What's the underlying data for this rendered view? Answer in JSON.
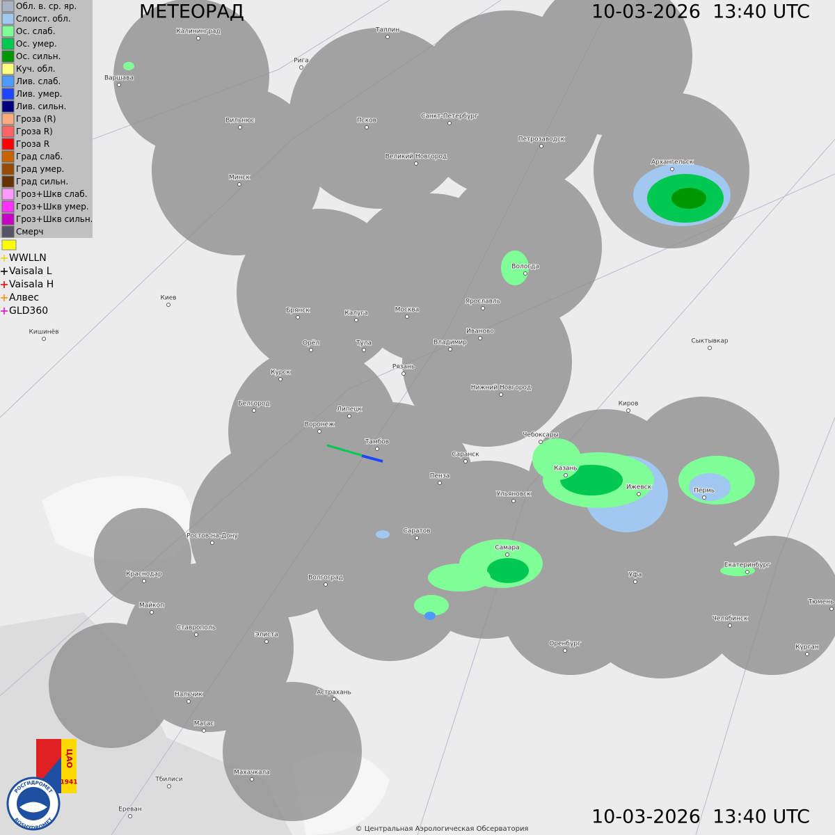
{
  "header": {
    "title": "МЕТЕОРАД",
    "timestamp": "10-03-2026  13:40 UTC"
  },
  "legend": {
    "items": [
      {
        "label": "Обл. в. ср. яр.",
        "color": "#aab4c4"
      },
      {
        "label": "Слоист. обл.",
        "color": "#a0c8f0"
      },
      {
        "label": "Ос. слаб.",
        "color": "#80ff98"
      },
      {
        "label": "Ос. умер.",
        "color": "#00c850"
      },
      {
        "label": "Ос. сильн.",
        "color": "#009600"
      },
      {
        "label": "Куч. обл.",
        "color": "#ffff80"
      },
      {
        "label": "Лив. слаб.",
        "color": "#4d9bff"
      },
      {
        "label": "Лив. умер.",
        "color": "#1e46ff"
      },
      {
        "label": "Лив. сильн.",
        "color": "#00007d"
      },
      {
        "label": "Гроза (R)",
        "color": "#ffaa80"
      },
      {
        "label": "Гроза R)",
        "color": "#ff6464"
      },
      {
        "label": "Гроза R",
        "color": "#ff0000"
      },
      {
        "label": "Град слаб.",
        "color": "#c86400"
      },
      {
        "label": "Град умер.",
        "color": "#964b00"
      },
      {
        "label": "Град сильн.",
        "color": "#643200"
      },
      {
        "label": "Гроз+Шкв слаб.",
        "color": "#ff9bff"
      },
      {
        "label": "Гроз+Шкв умер.",
        "color": "#ff32ff"
      },
      {
        "label": "Гроз+Шкв сильн.",
        "color": "#c800c8"
      },
      {
        "label": "Смерч",
        "color": "#555566"
      }
    ],
    "lightning": [
      {
        "label": "WWLLN",
        "color": "#e8d800"
      },
      {
        "label": "Vaisala L",
        "color": "#000000"
      },
      {
        "label": "Vaisala H",
        "color": "#e00000"
      },
      {
        "label": "Алвес",
        "color": "#ff8c00"
      },
      {
        "label": "GLD360",
        "color": "#e000e0"
      }
    ]
  },
  "map": {
    "cities": [
      "Калининград",
      "Таллин",
      "Рига",
      "Варшава",
      "Вильнюс",
      "Псков",
      "Санкт-Петербург",
      "Петрозаводск",
      "Архангельск",
      "Великий Новгород",
      "Минск",
      "Вологда",
      "Киев",
      "Брянск",
      "Калуга",
      "Москва",
      "Ярославль",
      "Иваново",
      "Кишинёв",
      "Орёл",
      "Тула",
      "Владимир",
      "Сыктывкар",
      "Курск",
      "Рязань",
      "Нижний Новгород",
      "Киров",
      "Белгород",
      "Липецк",
      "Воронеж",
      "Тамбов",
      "Чебоксары",
      "Саранск",
      "Казань",
      "Пенза",
      "Ижевск",
      "Пермь",
      "Ульяновск",
      "Саратов",
      "Ростов-на-Дону",
      "Самара",
      "Волгоград",
      "Краснодар",
      "Екатеринбург",
      "Уфа",
      "Майкоп",
      "Челябинск",
      "Элиста",
      "Ставрополь",
      "Оренбург",
      "Курган",
      "Тюмень",
      "Астрахань",
      "Нальчик",
      "Магас",
      "Махачкала",
      "Тбилиси",
      "Ереван"
    ]
  },
  "logo": {
    "agency": "РОСГИДРОМЕТ",
    "agency_en": "ROSHYDROMET",
    "org": "ЦАО",
    "year": "1941"
  },
  "footer": {
    "timestamp": "10-03-2026  13:40 UTC",
    "copyright": "© Центральная Аэрологическая Обсерватория"
  }
}
